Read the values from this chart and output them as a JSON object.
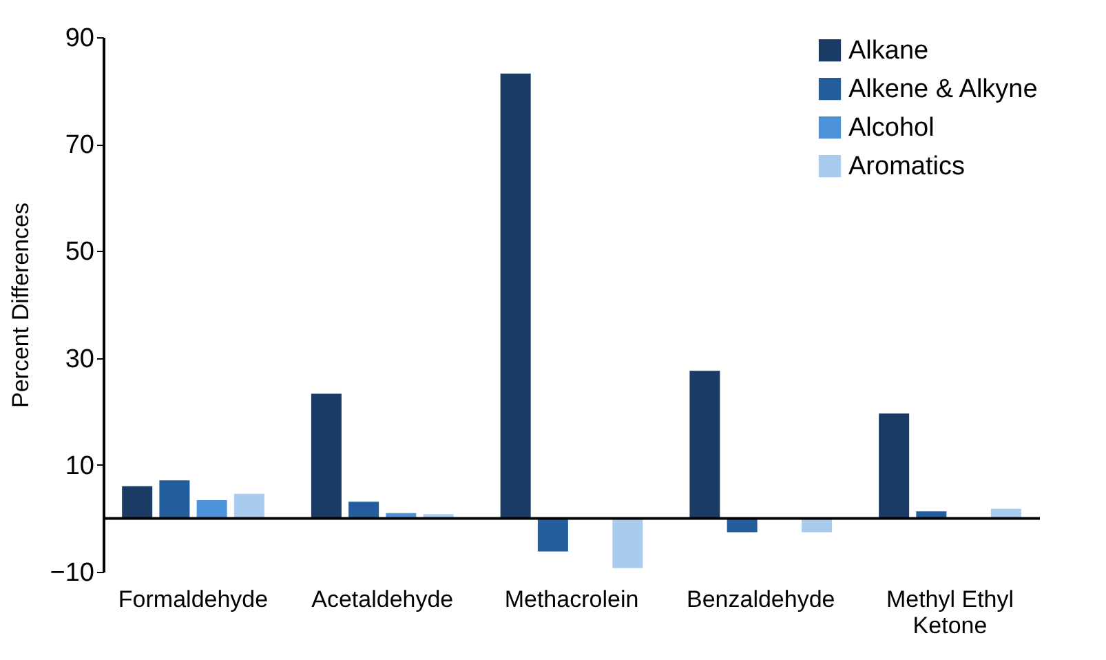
{
  "chart_data": {
    "type": "bar",
    "ylabel": "Percent Differences",
    "categories": [
      "Formaldehyde",
      "Acetaldehyde",
      "Methacrolein",
      "Benzaldehyde",
      "Methyl Ethyl Ketone"
    ],
    "series": [
      {
        "name": "Alkane",
        "color": "#1a3c64",
        "values": [
          6,
          23.3,
          83.2,
          27.6,
          19.6
        ]
      },
      {
        "name": "Alkene & Alkyne",
        "color": "#235d9b",
        "values": [
          7.1,
          3.1,
          -6.2,
          -2.6,
          1.3
        ]
      },
      {
        "name": "Alcohol",
        "color": "#4d93db",
        "values": [
          3.4,
          1,
          0,
          0,
          0
        ]
      },
      {
        "name": "Aromatics",
        "color": "#a8cbee",
        "values": [
          4.6,
          0.8,
          -9.3,
          -2.6,
          1.8
        ]
      }
    ],
    "ylim": [
      -10,
      90
    ],
    "yticks": [
      -10,
      10,
      30,
      50,
      70,
      90
    ],
    "grid": false,
    "legend": "top right"
  }
}
